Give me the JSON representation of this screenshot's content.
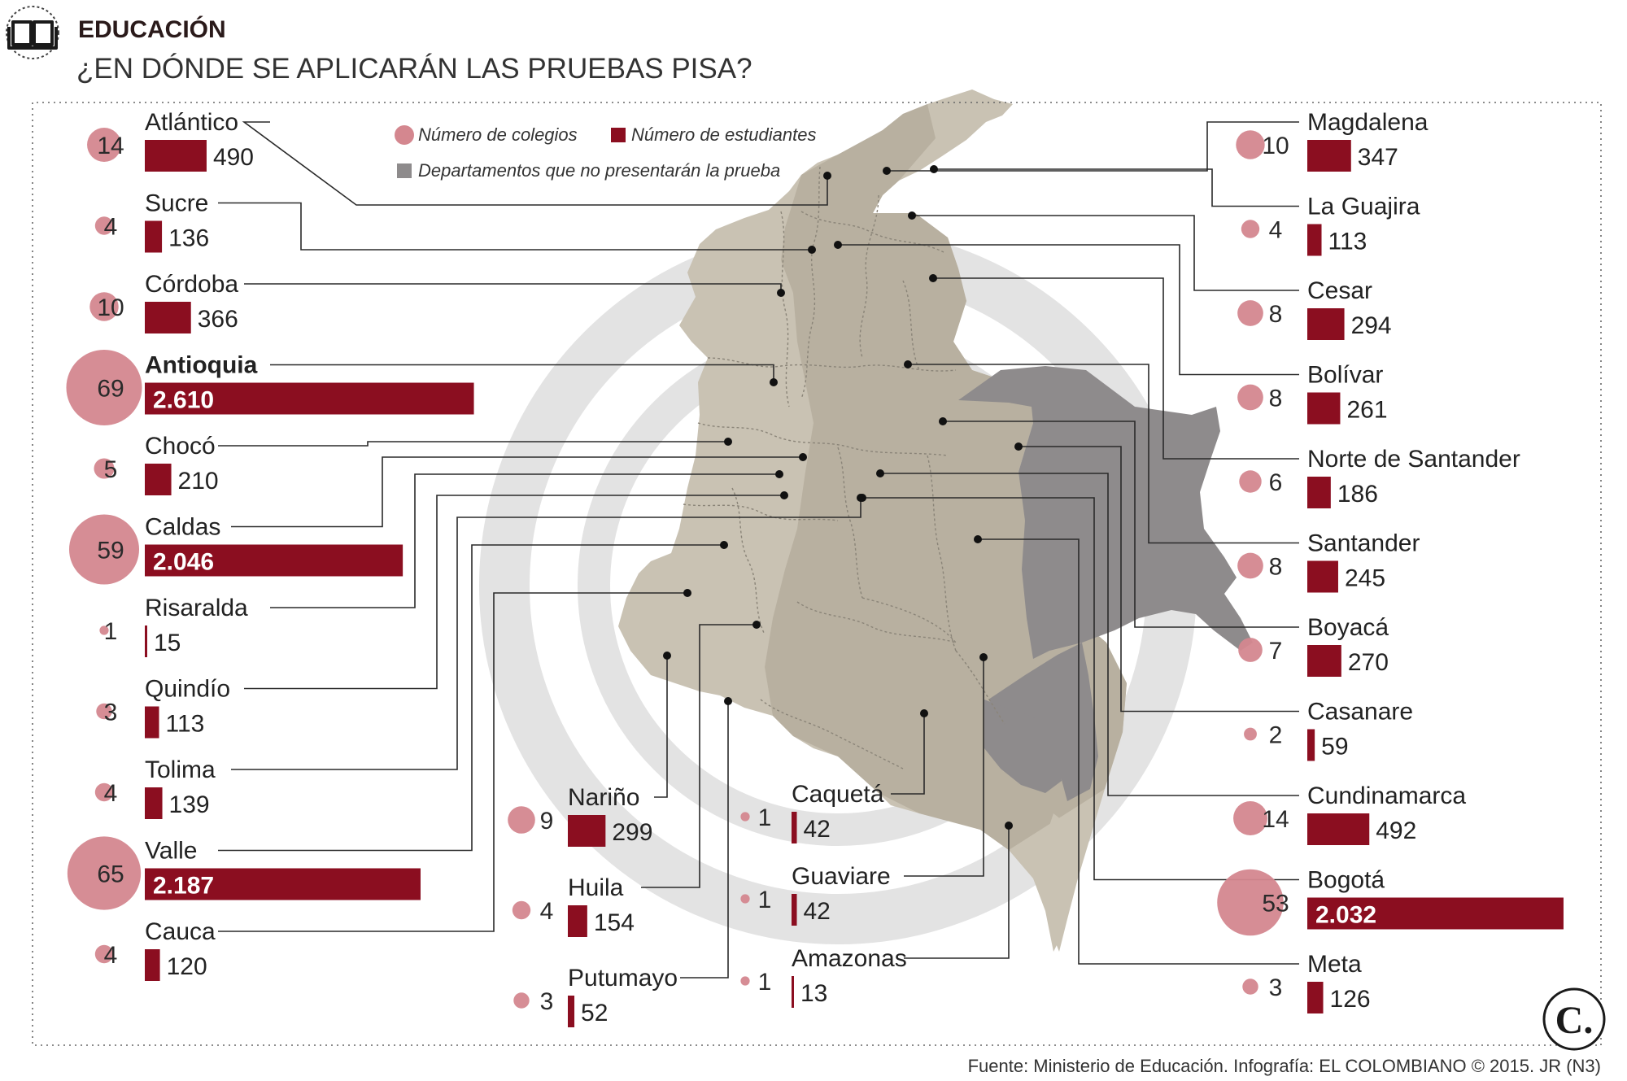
{
  "header": {
    "section": "EDUCACIÓN",
    "title": "¿EN DÓNDE SE APLICARÁN LAS PRUEBAS PISA?",
    "icon": "open-book-icon"
  },
  "legend": {
    "schools": "Número de colegios",
    "students": "Número de estudiantes",
    "excluded": "Departamentos que no presentarán la prueba"
  },
  "colors": {
    "schools": "#d4878f",
    "students": "#8b0e20",
    "excluded": "#8e8b8c",
    "participating": "#c9c2b3",
    "dark_participating": "#b8b0a0",
    "watermark": "#e3e3e3"
  },
  "footer": {
    "source": "Fuente: Ministerio de Educación. Infografía: EL COLOMBIANO © 2015. JR (N3)",
    "logo": "C."
  },
  "chart_data": {
    "type": "bar",
    "title": "¿EN DÓNDE SE APLICARÁN LAS PRUEBAS PISA?",
    "series": [
      {
        "name": "Número de colegios",
        "key": "colegios"
      },
      {
        "name": "Número de estudiantes",
        "key": "estudiantes"
      }
    ],
    "columns": [
      {
        "align": "left",
        "items": [
          {
            "name": "Atlántico",
            "colegios": 14,
            "estudiantes": 490,
            "estudiantes_label": "490",
            "highlight": false
          },
          {
            "name": "Sucre",
            "colegios": 4,
            "estudiantes": 136,
            "estudiantes_label": "136",
            "highlight": false
          },
          {
            "name": "Córdoba",
            "colegios": 10,
            "estudiantes": 366,
            "estudiantes_label": "366",
            "highlight": false
          },
          {
            "name": "Antioquia",
            "colegios": 69,
            "estudiantes": 2610,
            "estudiantes_label": "2.610",
            "highlight": true
          },
          {
            "name": "Chocó",
            "colegios": 5,
            "estudiantes": 210,
            "estudiantes_label": "210",
            "highlight": false
          },
          {
            "name": "Caldas",
            "colegios": 59,
            "estudiantes": 2046,
            "estudiantes_label": "2.046",
            "highlight": false
          },
          {
            "name": "Risaralda",
            "colegios": 1,
            "estudiantes": 15,
            "estudiantes_label": "15",
            "highlight": false
          },
          {
            "name": "Quindío",
            "colegios": 3,
            "estudiantes": 113,
            "estudiantes_label": "113",
            "highlight": false
          },
          {
            "name": "Tolima",
            "colegios": 4,
            "estudiantes": 139,
            "estudiantes_label": "139",
            "highlight": false
          },
          {
            "name": "Valle",
            "colegios": 65,
            "estudiantes": 2187,
            "estudiantes_label": "2.187",
            "highlight": false
          },
          {
            "name": "Cauca",
            "colegios": 4,
            "estudiantes": 120,
            "estudiantes_label": "120",
            "highlight": false
          }
        ]
      },
      {
        "align": "bottom1",
        "items": [
          {
            "name": "Nariño",
            "colegios": 9,
            "estudiantes": 299,
            "estudiantes_label": "299",
            "highlight": false
          },
          {
            "name": "Huila",
            "colegios": 4,
            "estudiantes": 154,
            "estudiantes_label": "154",
            "highlight": false
          },
          {
            "name": "Putumayo",
            "colegios": 3,
            "estudiantes": 52,
            "estudiantes_label": "52",
            "highlight": false
          }
        ]
      },
      {
        "align": "bottom2",
        "items": [
          {
            "name": "Caquetá",
            "colegios": 1,
            "estudiantes": 42,
            "estudiantes_label": "42",
            "highlight": false
          },
          {
            "name": "Guaviare",
            "colegios": 1,
            "estudiantes": 42,
            "estudiantes_label": "42",
            "highlight": false
          },
          {
            "name": "Amazonas",
            "colegios": 1,
            "estudiantes": 13,
            "estudiantes_label": "13",
            "highlight": false
          }
        ]
      },
      {
        "align": "right",
        "items": [
          {
            "name": "Magdalena",
            "colegios": 10,
            "estudiantes": 347,
            "estudiantes_label": "347",
            "highlight": false
          },
          {
            "name": "La Guajira",
            "colegios": 4,
            "estudiantes": 113,
            "estudiantes_label": "113",
            "highlight": false
          },
          {
            "name": "Cesar",
            "colegios": 8,
            "estudiantes": 294,
            "estudiantes_label": "294",
            "highlight": false
          },
          {
            "name": "Bolívar",
            "colegios": 8,
            "estudiantes": 261,
            "estudiantes_label": "261",
            "highlight": false
          },
          {
            "name": "Norte de Santander",
            "colegios": 6,
            "estudiantes": 186,
            "estudiantes_label": "186",
            "highlight": false
          },
          {
            "name": "Santander",
            "colegios": 8,
            "estudiantes": 245,
            "estudiantes_label": "245",
            "highlight": false
          },
          {
            "name": "Boyacá",
            "colegios": 7,
            "estudiantes": 270,
            "estudiantes_label": "270",
            "highlight": false
          },
          {
            "name": "Casanare",
            "colegios": 2,
            "estudiantes": 59,
            "estudiantes_label": "59",
            "highlight": false
          },
          {
            "name": "Cundinamarca",
            "colegios": 14,
            "estudiantes": 492,
            "estudiantes_label": "492",
            "highlight": false
          },
          {
            "name": "Bogotá",
            "colegios": 53,
            "estudiantes": 2032,
            "estudiantes_label": "2.032",
            "highlight": false
          },
          {
            "name": "Meta",
            "colegios": 3,
            "estudiantes": 126,
            "estudiantes_label": "126",
            "highlight": false
          }
        ]
      }
    ]
  }
}
